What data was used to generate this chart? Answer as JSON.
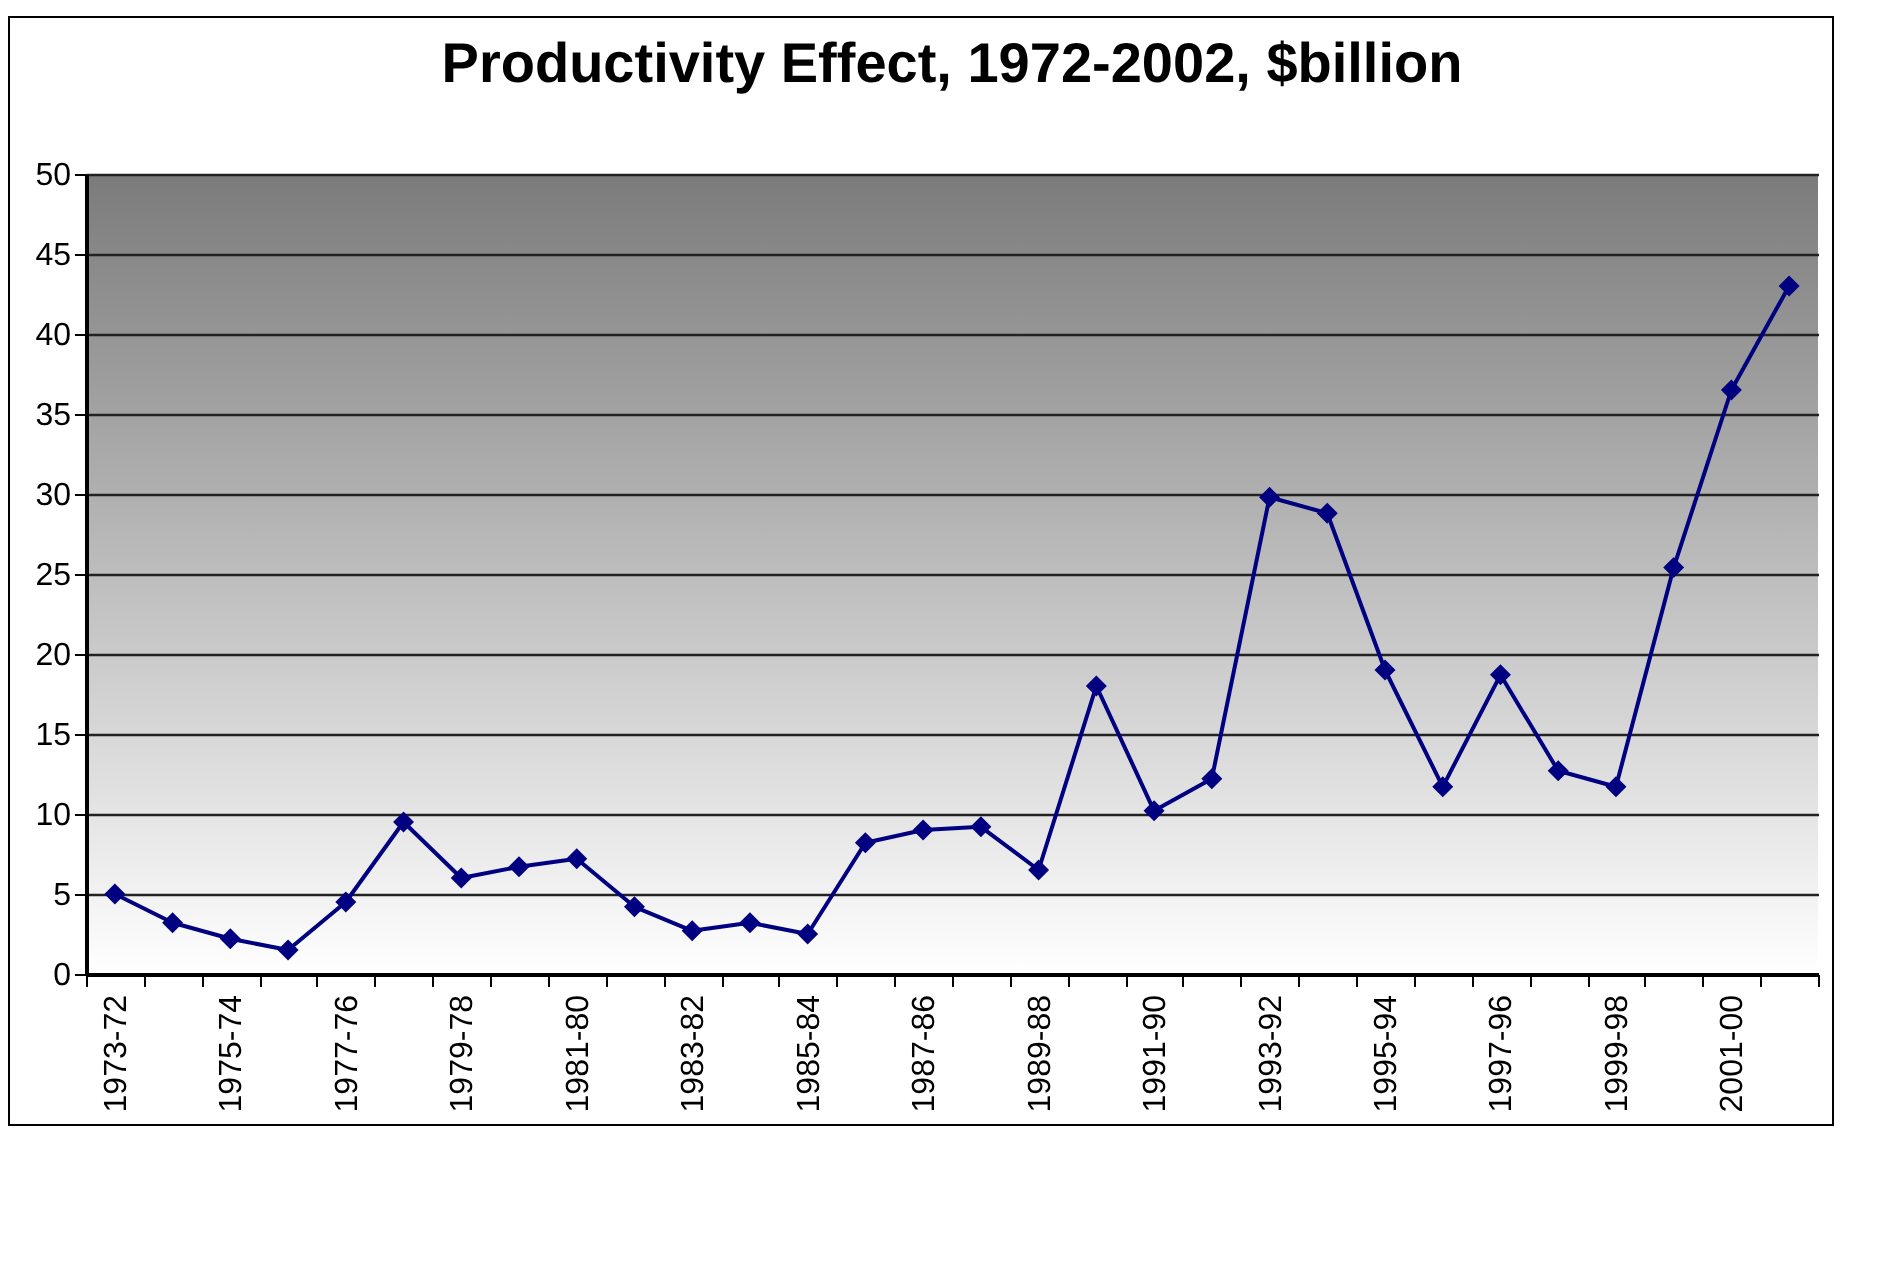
{
  "chart_data": {
    "type": "line",
    "title": "Productivity Effect, 1972-2002, $billion",
    "categories": [
      "1973-72",
      null,
      "1975-74",
      null,
      "1977-76",
      null,
      "1979-78",
      null,
      "1981-80",
      null,
      "1983-82",
      null,
      "1985-84",
      null,
      "1987-86",
      null,
      "1989-88",
      null,
      "1991-90",
      null,
      "1993-92",
      null,
      "1995-94",
      null,
      "1997-96",
      null,
      "1999-98",
      null,
      "2001-00",
      null
    ],
    "series": [
      {
        "color": "#000080",
        "values": [
          5,
          3.2,
          2.2,
          1.5,
          4.5,
          9.5,
          6,
          6.7,
          7.2,
          4.2,
          2.7,
          3.2,
          2.5,
          8.2,
          9,
          9.2,
          6.5,
          18,
          10.2,
          12.2,
          29.8,
          28.8,
          19,
          11.7,
          18.7,
          12.7,
          11.7,
          25.4,
          36.5,
          43
        ]
      }
    ],
    "ylim": [
      0,
      50
    ],
    "yticks": [
      0,
      5,
      10,
      15,
      20,
      25,
      30,
      35,
      40,
      45,
      50
    ],
    "grid": "y",
    "marker": "diamond",
    "line_style": "solid"
  }
}
